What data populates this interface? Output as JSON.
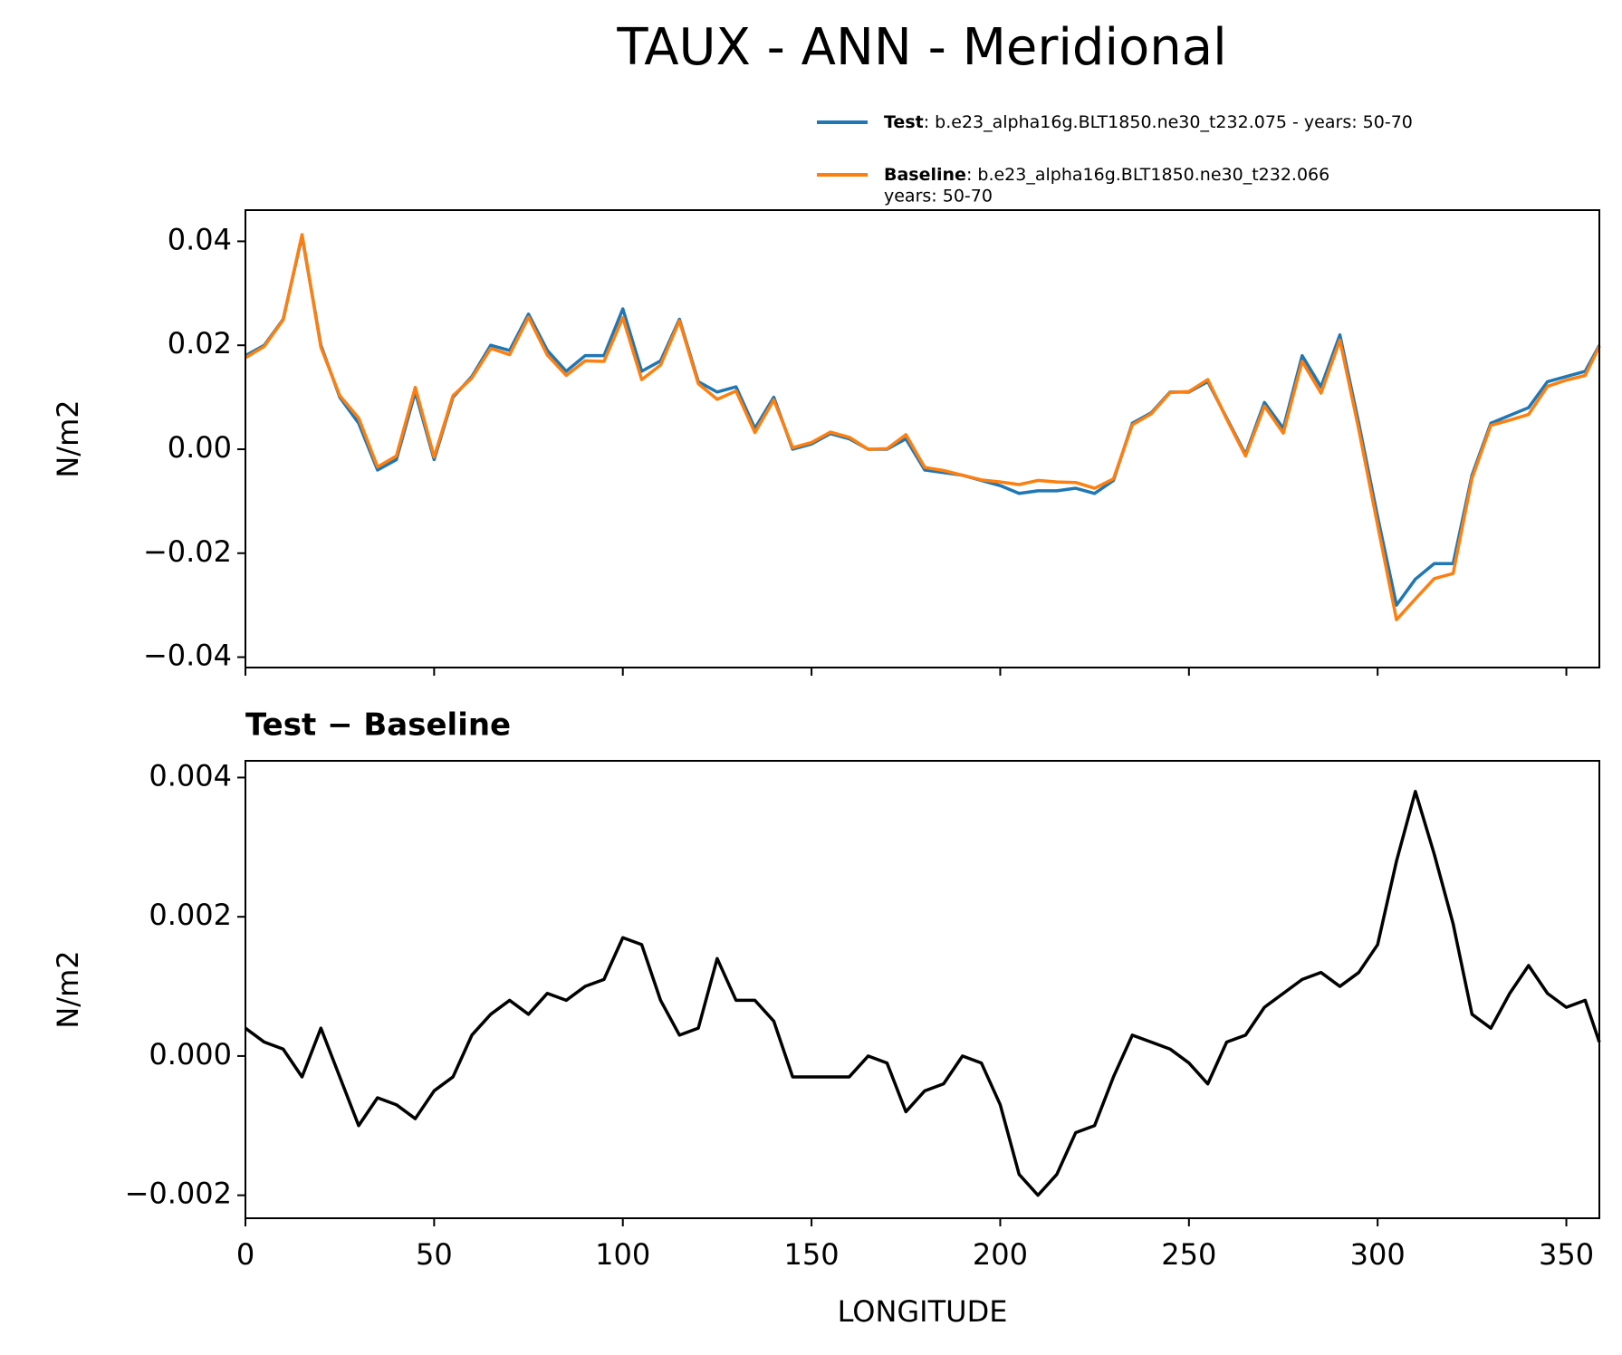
{
  "title": "TAUX - ANN - Meridional",
  "chart_data": [
    {
      "type": "line",
      "ylabel": "N/m2",
      "x": [
        0,
        5,
        10,
        15,
        20,
        25,
        30,
        35,
        40,
        45,
        50,
        55,
        60,
        65,
        70,
        75,
        80,
        85,
        90,
        95,
        100,
        105,
        110,
        115,
        120,
        125,
        130,
        135,
        140,
        145,
        150,
        155,
        160,
        165,
        170,
        175,
        180,
        185,
        190,
        195,
        200,
        205,
        210,
        215,
        220,
        225,
        230,
        235,
        240,
        245,
        250,
        255,
        260,
        265,
        270,
        275,
        280,
        285,
        290,
        295,
        300,
        305,
        310,
        315,
        320,
        325,
        330,
        335,
        340,
        345,
        350,
        355,
        358.75
      ],
      "xlim": [
        0,
        358.75
      ],
      "ylim": [
        -0.042,
        0.046
      ],
      "yticks": [
        {
          "value": -0.04,
          "label": "−0.04"
        },
        {
          "value": -0.02,
          "label": "−0.02"
        },
        {
          "value": 0,
          "label": "0.00"
        },
        0.02,
        0.04
      ],
      "series": [
        {
          "name": "Test",
          "description": [
            ": b.e23_alpha16g.BLT1850.ne30_t232.075 - years: 50-70"
          ],
          "color": "#1f77b4",
          "values": [
            0.018,
            0.02,
            0.025,
            0.041,
            0.02,
            0.01,
            0.005,
            -0.004,
            -0.002,
            0.011,
            -0.002,
            0.01,
            0.014,
            0.02,
            0.019,
            0.026,
            0.019,
            0.015,
            0.018,
            0.018,
            0.027,
            0.015,
            0.017,
            0.025,
            0.013,
            0.011,
            0.012,
            0.004,
            0.01,
            0.0,
            0.001,
            0.003,
            0.002,
            0.0,
            0.0,
            0.002,
            -0.004,
            -0.0045,
            -0.005,
            -0.006,
            -0.007,
            -0.0085,
            -0.008,
            -0.008,
            -0.0075,
            -0.0085,
            -0.006,
            0.005,
            0.007,
            0.011,
            0.011,
            0.013,
            0.006,
            -0.001,
            0.009,
            0.004,
            0.018,
            0.012,
            0.022,
            0.005,
            -0.013,
            -0.03,
            -0.025,
            -0.022,
            -0.022,
            -0.005,
            0.005,
            0.0065,
            0.008,
            0.013,
            0.014,
            0.015,
            0.02
          ]
        },
        {
          "name": "Baseline",
          "description": [
            ": b.e23_alpha16g.BLT1850.ne30_t232.066",
            "years: 50-70"
          ],
          "color": "#ff7f0e",
          "values": [
            0.0176,
            0.0198,
            0.0249,
            0.0413,
            0.0196,
            0.0103,
            0.006,
            -0.0034,
            -0.0013,
            0.0119,
            -0.0015,
            0.0103,
            0.0137,
            0.0194,
            0.0182,
            0.0254,
            0.0181,
            0.0142,
            0.017,
            0.0169,
            0.0253,
            0.0134,
            0.0162,
            0.0247,
            0.0126,
            0.0096,
            0.0112,
            0.0032,
            0.0095,
            0.0003,
            0.0013,
            0.0033,
            0.0023,
            0.0,
            0.0001,
            0.0028,
            -0.0035,
            -0.0041,
            -0.005,
            -0.0059,
            -0.0063,
            -0.0068,
            -0.006,
            -0.0063,
            -0.0064,
            -0.0075,
            -0.0057,
            0.0047,
            0.0068,
            0.0109,
            0.0111,
            0.0134,
            0.0058,
            -0.0013,
            0.0083,
            0.0031,
            0.0169,
            0.0108,
            0.021,
            0.0038,
            -0.0146,
            -0.0328,
            -0.0288,
            -0.0249,
            -0.0239,
            -0.0056,
            0.0046,
            0.0056,
            0.0067,
            0.0121,
            0.0133,
            0.0142,
            0.0198
          ]
        }
      ]
    },
    {
      "type": "line",
      "title": "Test − Baseline",
      "xlabel": "LONGITUDE",
      "ylabel": "N/m2",
      "x": [
        0,
        5,
        10,
        15,
        20,
        25,
        30,
        35,
        40,
        45,
        50,
        55,
        60,
        65,
        70,
        75,
        80,
        85,
        90,
        95,
        100,
        105,
        110,
        115,
        120,
        125,
        130,
        135,
        140,
        145,
        150,
        155,
        160,
        165,
        170,
        175,
        180,
        185,
        190,
        195,
        200,
        205,
        210,
        215,
        220,
        225,
        230,
        235,
        240,
        245,
        250,
        255,
        260,
        265,
        270,
        275,
        280,
        285,
        290,
        295,
        300,
        305,
        310,
        315,
        320,
        325,
        330,
        335,
        340,
        345,
        350,
        355,
        358.75
      ],
      "xlim": [
        0,
        358.75
      ],
      "xticks": [
        0,
        50,
        100,
        150,
        200,
        250,
        300,
        350
      ],
      "ylim": [
        -0.00233,
        0.00424
      ],
      "yticks": [
        {
          "value": -0.002,
          "label": "−0.002"
        },
        {
          "value": 0,
          "label": "0.000"
        },
        0.002,
        0.004
      ],
      "series": [
        {
          "color": "#000000",
          "values": [
            0.0004,
            0.0002,
            0.0001,
            -0.0003,
            0.0004,
            -0.0003,
            -0.001,
            -0.0006,
            -0.0007,
            -0.0009,
            -0.0005,
            -0.0003,
            0.0003,
            0.0006,
            0.0008,
            0.0006,
            0.0009,
            0.0008,
            0.001,
            0.0011,
            0.0017,
            0.0016,
            0.0008,
            0.0003,
            0.0004,
            0.0014,
            0.0008,
            0.0008,
            0.0005,
            -0.0003,
            -0.0003,
            -0.0003,
            -0.0003,
            0.0,
            -0.0001,
            -0.0008,
            -0.0005,
            -0.0004,
            0.0,
            -0.0001,
            -0.0007,
            -0.0017,
            -0.002,
            -0.0017,
            -0.0011,
            -0.001,
            -0.0003,
            0.0003,
            0.0002,
            0.0001,
            -0.0001,
            -0.0004,
            0.0002,
            0.0003,
            0.0007,
            0.0009,
            0.0011,
            0.0012,
            0.001,
            0.0012,
            0.0016,
            0.0028,
            0.0038,
            0.0029,
            0.0019,
            0.0006,
            0.0004,
            0.0009,
            0.0013,
            0.0009,
            0.0007,
            0.0008,
            0.0002
          ]
        }
      ]
    }
  ]
}
